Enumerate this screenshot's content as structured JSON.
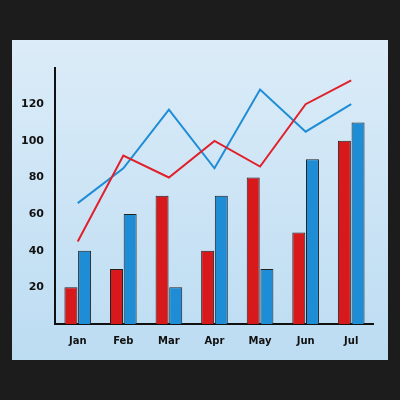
{
  "chart_data": {
    "type": "bar",
    "categories": [
      "Jan",
      "Feb",
      "Mar",
      "Apr",
      "May",
      "Jun",
      "Jul"
    ],
    "series": [
      {
        "type": "bar",
        "color": "#d7191c",
        "values": [
          20,
          30,
          70,
          40,
          80,
          50,
          100
        ]
      },
      {
        "type": "bar",
        "color": "#1f8dd6",
        "values": [
          40,
          60,
          20,
          70,
          30,
          90,
          110
        ]
      },
      {
        "type": "line",
        "color": "#e0202a",
        "values": [
          45,
          92,
          80,
          100,
          86,
          120,
          133
        ]
      },
      {
        "type": "line",
        "color": "#1f8dd6",
        "values": [
          66,
          85,
          117,
          85,
          128,
          105,
          120
        ]
      }
    ],
    "ylim": [
      0,
      140
    ],
    "yticks": [
      20,
      40,
      60,
      80,
      100,
      120
    ],
    "grid": false
  }
}
